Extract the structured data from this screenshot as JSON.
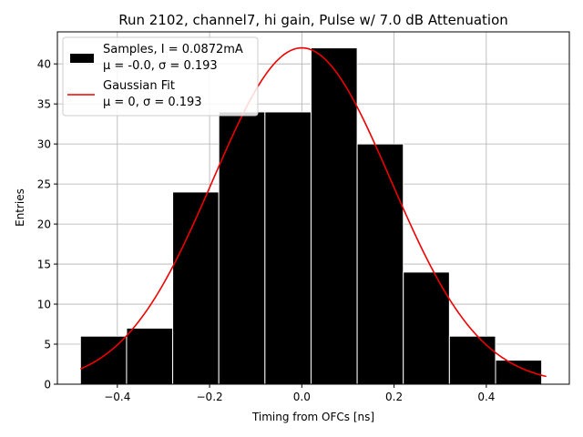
{
  "chart_data": {
    "type": "bar",
    "title": "Run 2102, channel7, hi gain, Pulse w/ 7.0 dB Attenuation",
    "xlabel": "Timing from OFCs [ns]",
    "ylabel": "Entries",
    "xlim": [
      -0.53,
      0.58
    ],
    "ylim": [
      0,
      44
    ],
    "xticks": [
      -0.4,
      -0.2,
      0.0,
      0.2,
      0.4
    ],
    "xtick_labels": [
      "−0.4",
      "−0.2",
      "0.0",
      "0.2",
      "0.4"
    ],
    "yticks": [
      0,
      5,
      10,
      15,
      20,
      25,
      30,
      35,
      40
    ],
    "ytick_labels": [
      "0",
      "5",
      "10",
      "15",
      "20",
      "25",
      "30",
      "35",
      "40"
    ],
    "grid": true,
    "bin_edges": [
      -0.48,
      -0.38,
      -0.28,
      -0.18,
      -0.08,
      0.02,
      0.12,
      0.22,
      0.32,
      0.42,
      0.52
    ],
    "histogram": {
      "name": "Samples, I = 0.0872mA",
      "values": [
        6,
        7,
        24,
        34,
        34,
        42,
        30,
        14,
        6,
        3
      ],
      "color": "#000000",
      "edgecolor": "#ffffff"
    },
    "fit": {
      "name": "Gaussian Fit",
      "mu": 0,
      "sigma": 0.193,
      "peak": 42,
      "x_range": [
        -0.48,
        0.53
      ],
      "color": "#ee0000"
    },
    "legend": {
      "location": "upper left",
      "entries": [
        {
          "line1": "Samples, I = 0.0872mA",
          "line2": "μ = -0.0, σ = 0.193"
        },
        {
          "line1": "Gaussian Fit",
          "line2": "μ = 0, σ = 0.193"
        }
      ]
    }
  }
}
